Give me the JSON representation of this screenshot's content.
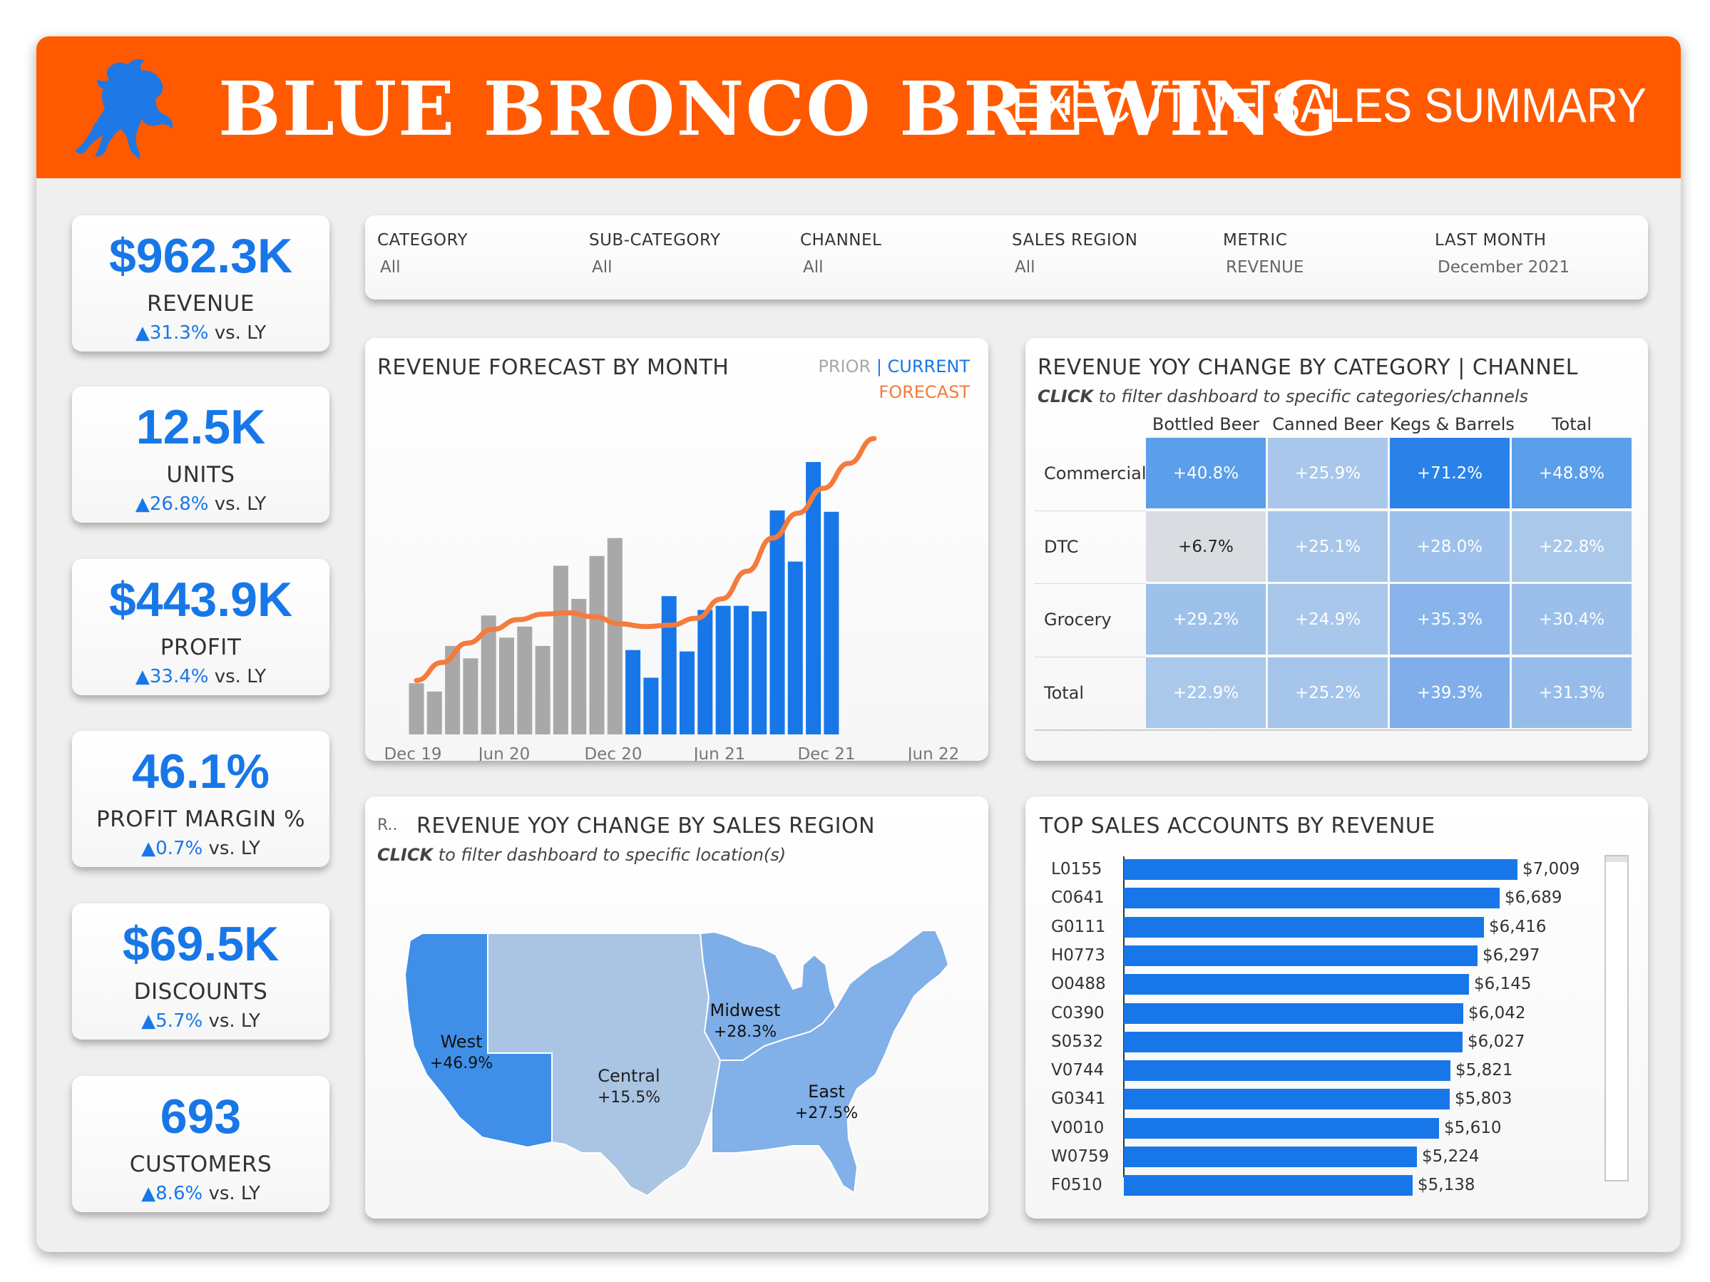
{
  "header": {
    "brand": "BLUE BRONCO BREWING",
    "title": "EXECUTIVE SALES SUMMARY",
    "logo_icon": "horse-icon",
    "bg_color": "#ff5a00"
  },
  "kpis": [
    {
      "value": "$962.3K",
      "label": "REVENUE",
      "change": "31.3%",
      "suffix": " vs. LY"
    },
    {
      "value": "12.5K",
      "label": "UNITS",
      "change": "26.8%",
      "suffix": " vs. LY"
    },
    {
      "value": "$443.9K",
      "label": "PROFIT",
      "change": "33.4%",
      "suffix": " vs. LY"
    },
    {
      "value": "46.1%",
      "label": "PROFIT MARGIN %",
      "change": "0.7%",
      "suffix": " vs. LY"
    },
    {
      "value": "$69.5K",
      "label": "DISCOUNTS",
      "change": "5.7%",
      "suffix": " vs. LY"
    },
    {
      "value": "693",
      "label": "CUSTOMERS",
      "change": "8.6%",
      "suffix": " vs. LY"
    }
  ],
  "filters": [
    {
      "label": "CATEGORY",
      "value": "All"
    },
    {
      "label": "SUB-CATEGORY",
      "value": "All"
    },
    {
      "label": "CHANNEL",
      "value": "All"
    },
    {
      "label": "SALES REGION",
      "value": "All"
    },
    {
      "label": "METRIC",
      "value": "REVENUE"
    },
    {
      "label": "LAST MONTH",
      "value": "December 2021"
    }
  ],
  "forecast": {
    "title": "REVENUE FORECAST BY MONTH",
    "legend": {
      "prior": "PRIOR",
      "sep": "|",
      "current": "CURRENT",
      "forecast": "FORECAST"
    },
    "colors": {
      "prior": "#a8a8a8",
      "current": "#1877e8",
      "forecast": "#f47b3c"
    }
  },
  "chart_data": {
    "type": "bar",
    "x_tick_labels": [
      "Dec 19",
      "Jun 20",
      "Dec 20",
      "Jun 21",
      "Dec 21",
      "Jun 22"
    ],
    "series": [
      {
        "name": "PRIOR",
        "values": [
          37,
          31,
          64,
          55,
          86,
          70,
          78,
          64,
          122,
          98,
          129,
          142
        ]
      },
      {
        "name": "CURRENT",
        "values": [
          61,
          41,
          100,
          60,
          90,
          93,
          93,
          89,
          162,
          125,
          197,
          161
        ]
      },
      {
        "name": "FORECAST",
        "values": [
          39,
          52,
          66,
          76,
          83,
          87,
          88,
          85,
          80,
          78,
          79,
          84,
          98,
          118,
          142,
          160,
          178,
          196,
          214
        ]
      }
    ],
    "ylim": [
      0,
      230
    ]
  },
  "yoy_category": {
    "title": "REVENUE YOY CHANGE BY CATEGORY | CHANNEL",
    "sub_bold": "CLICK",
    "sub_rest": " to filter dashboard to specific categories/channels",
    "columns": [
      "Bottled Beer",
      "Canned Beer",
      "Kegs & Barrels",
      "Total"
    ],
    "rows": [
      {
        "label": "Commercial",
        "values": [
          "+40.8%",
          "+25.9%",
          "+71.2%",
          "+48.8%"
        ],
        "colors": [
          "#5b9ee9",
          "#a9c7ea",
          "#2a82e8",
          "#5b9ee9"
        ]
      },
      {
        "label": "DTC",
        "values": [
          "+6.7%",
          "+25.1%",
          "+28.0%",
          "+22.8%"
        ],
        "colors": [
          "#d9dde2",
          "#a9c7ea",
          "#9dc1ea",
          "#aac8ea"
        ]
      },
      {
        "label": "Grocery",
        "values": [
          "+29.2%",
          "+24.9%",
          "+35.3%",
          "+30.4%"
        ],
        "colors": [
          "#9ec1ea",
          "#a9c7ea",
          "#88b4eb",
          "#9bbfea"
        ]
      },
      {
        "label": "Total",
        "values": [
          "+22.9%",
          "+25.2%",
          "+39.3%",
          "+31.3%"
        ],
        "colors": [
          "#aac8ea",
          "#a6c5ea",
          "#80aeea",
          "#97bcea"
        ]
      }
    ]
  },
  "region": {
    "title": "REVENUE YOY CHANGE BY SALES REGION",
    "corner": "R..",
    "sub_bold": "CLICK",
    "sub_rest": "  to filter dashboard to specific location(s)",
    "regions": [
      {
        "name": "West",
        "value": "+46.9%",
        "color": "#3f8fe8"
      },
      {
        "name": "Central",
        "value": "+15.5%",
        "color": "#aac4e3"
      },
      {
        "name": "Midwest",
        "value": "+28.3%",
        "color": "#7eaee8"
      },
      {
        "name": "East",
        "value": "+27.5%",
        "color": "#82b0e8"
      }
    ]
  },
  "accounts": {
    "title": "TOP SALES ACCOUNTS BY REVENUE",
    "max": 7009,
    "items": [
      {
        "id": "L0155",
        "value": 7009,
        "label": "$7,009"
      },
      {
        "id": "C0641",
        "value": 6689,
        "label": "$6,689"
      },
      {
        "id": "G0111",
        "value": 6416,
        "label": "$6,416"
      },
      {
        "id": "H0773",
        "value": 6297,
        "label": "$6,297"
      },
      {
        "id": "O0488",
        "value": 6145,
        "label": "$6,145"
      },
      {
        "id": "C0390",
        "value": 6042,
        "label": "$6,042"
      },
      {
        "id": "S0532",
        "value": 6027,
        "label": "$6,027"
      },
      {
        "id": "V0744",
        "value": 5821,
        "label": "$5,821"
      },
      {
        "id": "G0341",
        "value": 5803,
        "label": "$5,803"
      },
      {
        "id": "V0010",
        "value": 5610,
        "label": "$5,610"
      },
      {
        "id": "W0759",
        "value": 5224,
        "label": "$5,224"
      },
      {
        "id": "F0510",
        "value": 5138,
        "label": "$5,138"
      }
    ]
  }
}
